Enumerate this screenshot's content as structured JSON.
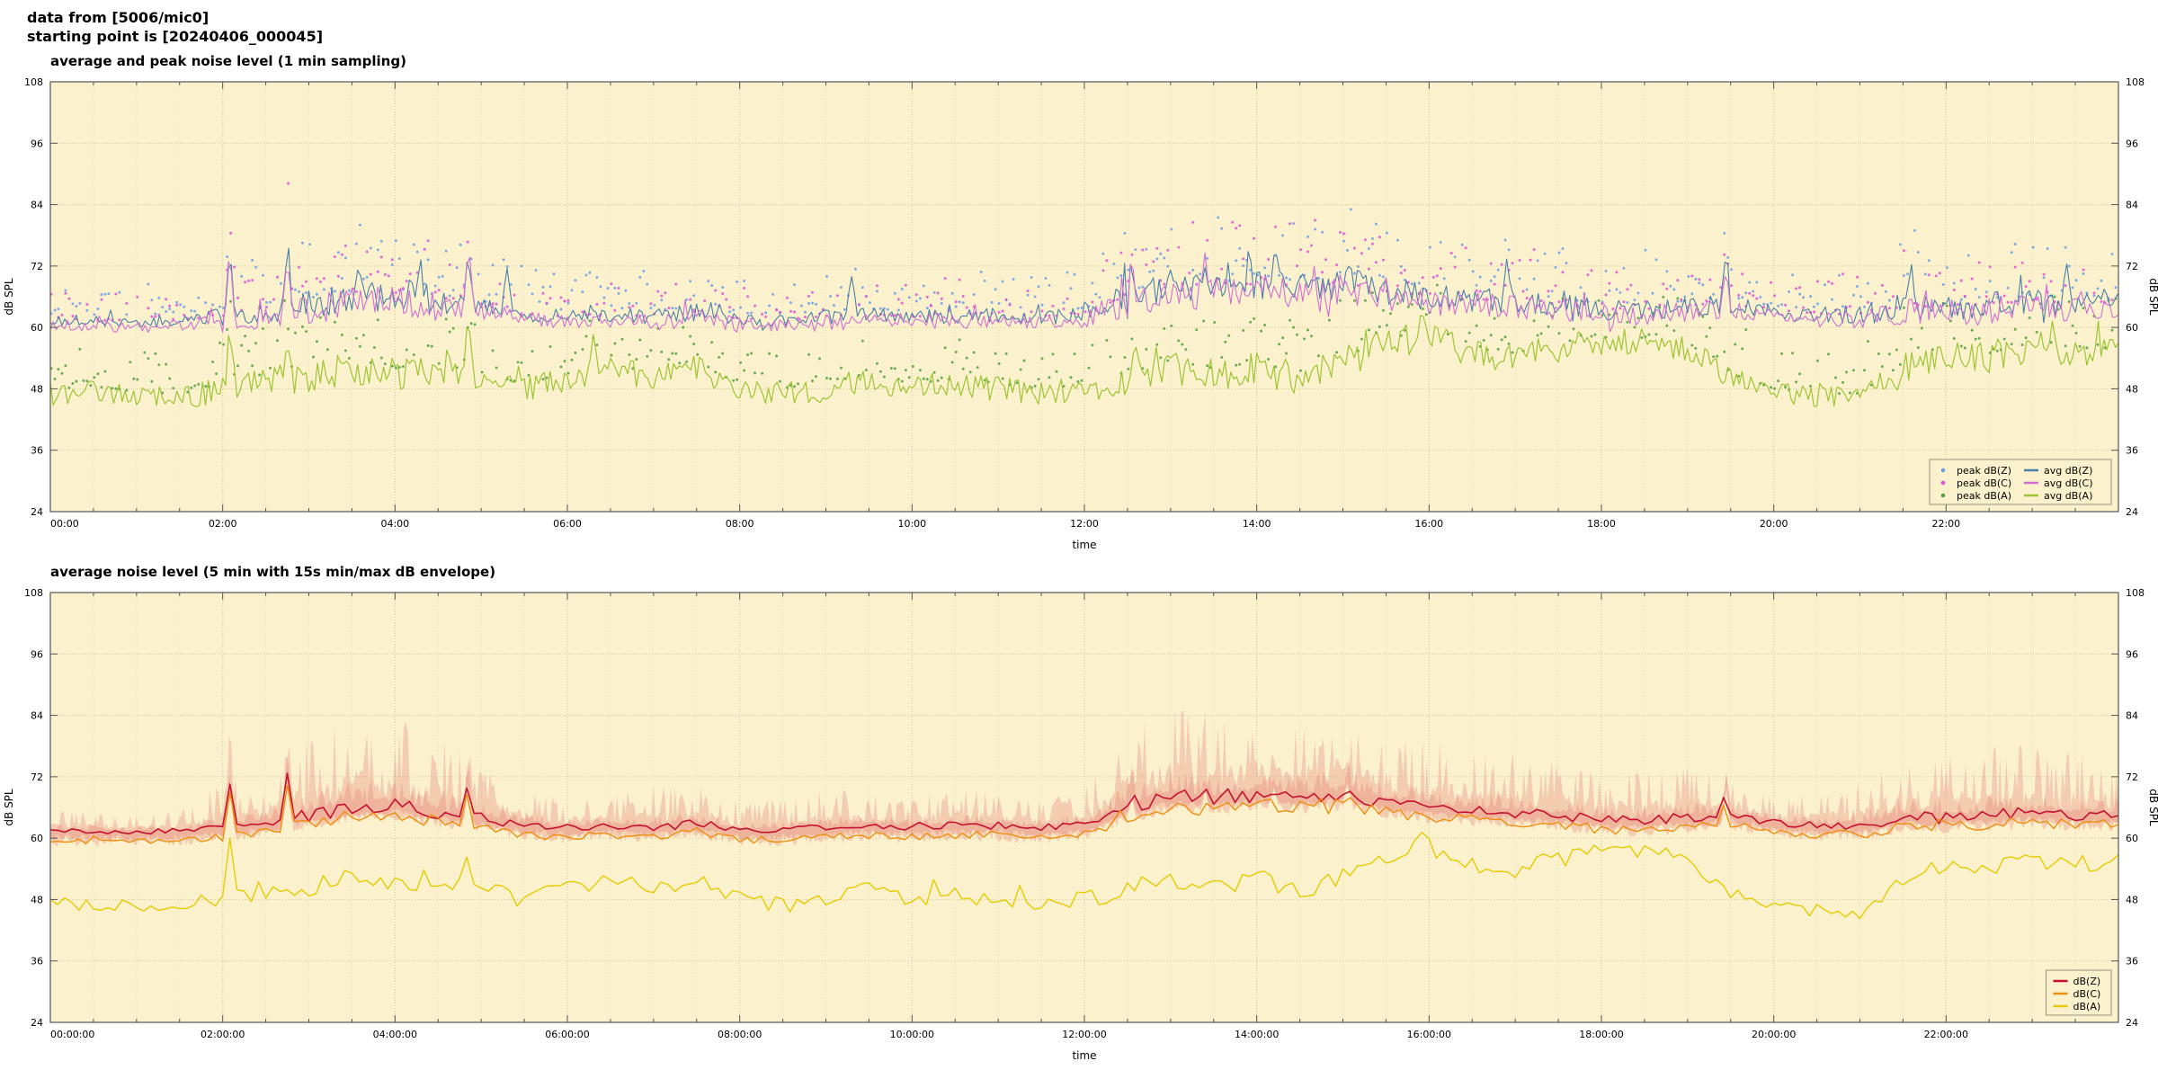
{
  "header": {
    "line1": "data from [5006/mic0]",
    "line2": "starting point is [20240406_000045]"
  },
  "palette": {
    "plot_bg": "#fbf2cd",
    "grid_minor": "#e8debb",
    "grid_major": "#cfc28e",
    "axis": "#555555",
    "text": "#000000",
    "peak_z": "#6e9fe6",
    "peak_c": "#e050d8",
    "peak_a": "#55a040",
    "avg_z": "#4a7fa6",
    "avg_c": "#cf6fd4",
    "avg_a": "#9dc433",
    "db_z": "#c41230",
    "db_c": "#ef8e0e",
    "db_a": "#e6ca00",
    "env_fill": "rgba(228,110,100,0.28)",
    "legend_border": "#999180"
  },
  "chart_data": [
    {
      "type": "line+scatter",
      "title": "average and peak noise level (1 min sampling)",
      "xlabel": "time",
      "ylabel": "dB SPL",
      "ylabel_right": "dB SPL",
      "xlim_hours": [
        0,
        24
      ],
      "ylim": [
        24,
        108
      ],
      "yticks": [
        24,
        36,
        48,
        60,
        72,
        84,
        96,
        108
      ],
      "xtick_hours": [
        0,
        2,
        4,
        6,
        8,
        10,
        12,
        14,
        16,
        18,
        20,
        22
      ],
      "xtick_labels": [
        "00:00",
        "02:00",
        "04:00",
        "06:00",
        "08:00",
        "10:00",
        "12:00",
        "14:00",
        "16:00",
        "18:00",
        "20:00",
        "22:00"
      ],
      "step_min": 2,
      "t_hours": [
        0,
        0.5,
        1,
        1.5,
        2,
        2.5,
        3,
        3.5,
        4,
        4.5,
        5,
        5.5,
        6,
        6.5,
        7,
        7.5,
        8,
        8.5,
        9,
        9.5,
        10,
        10.5,
        11,
        11.5,
        12,
        12.5,
        13,
        13.5,
        14,
        14.5,
        15,
        15.5,
        16,
        16.5,
        17,
        17.5,
        18,
        18.5,
        19,
        19.5,
        20,
        20.5,
        21,
        21.5,
        22,
        22.5,
        23,
        23.5
      ],
      "activity": [
        4,
        4,
        4,
        4,
        10,
        10,
        16,
        18,
        18,
        16,
        10,
        8,
        6,
        6,
        8,
        8,
        6,
        6,
        8,
        6,
        6,
        8,
        6,
        6,
        8,
        16,
        18,
        17,
        18,
        17,
        18,
        16,
        15,
        13,
        12,
        12,
        10,
        10,
        10,
        8,
        6,
        6,
        10,
        14,
        14,
        14,
        14,
        12
      ],
      "series": [
        {
          "name": "avg dB(Z)",
          "style": "line",
          "color_key": "avg_z",
          "width": 1.1,
          "jitter": [
            1.1,
            0.14
          ],
          "values": [
            61.5,
            61.3,
            61.2,
            61.4,
            62,
            63,
            64.5,
            66,
            66.5,
            65,
            64,
            62.5,
            62,
            62.5,
            62,
            63,
            61.5,
            61.5,
            62,
            62.5,
            62,
            62.5,
            62.5,
            62,
            62.5,
            66,
            68,
            67.5,
            68.5,
            68,
            68.5,
            67,
            66,
            65.5,
            65,
            64.5,
            63.5,
            63.5,
            64,
            64.5,
            63,
            62.5,
            62.5,
            64,
            64,
            64.5,
            65,
            64.5
          ],
          "spikes": [
            [
              2.08,
              76
            ],
            [
              2.75,
              77.5
            ],
            [
              3.55,
              71.5
            ],
            [
              4.3,
              72
            ],
            [
              4.85,
              76.5
            ],
            [
              5.3,
              70
            ],
            [
              7.5,
              70.5
            ],
            [
              9.3,
              69.5
            ],
            [
              12.55,
              74
            ],
            [
              13.4,
              74.5
            ],
            [
              14.2,
              75
            ],
            [
              15.05,
              74
            ],
            [
              16.9,
              72
            ],
            [
              19.45,
              75.5
            ],
            [
              21.6,
              71.5
            ],
            [
              23.0,
              73.5
            ],
            [
              23.4,
              72.5
            ]
          ]
        },
        {
          "name": "avg dB(C)",
          "style": "line",
          "color_key": "avg_c",
          "width": 1.1,
          "jitter": [
            1.1,
            0.14
          ],
          "values": [
            60.4,
            60.2,
            60.1,
            60.3,
            60.9,
            61.9,
            63.4,
            64.9,
            65.4,
            63.9,
            62.9,
            61.4,
            60.9,
            61.4,
            60.9,
            61.9,
            60.4,
            60.4,
            60.9,
            61.4,
            60.9,
            61.4,
            61.4,
            60.9,
            61.4,
            64.9,
            66.9,
            66.4,
            67.4,
            66.9,
            67.4,
            65.9,
            64.9,
            64.4,
            63.9,
            63.4,
            62.4,
            62.4,
            62.9,
            63.4,
            61.9,
            61.4,
            61.4,
            62.9,
            62.9,
            63.4,
            63.9,
            63.4
          ],
          "spikes": [
            [
              2.08,
              74.8
            ],
            [
              2.75,
              76.2
            ],
            [
              4.85,
              75.2
            ],
            [
              12.55,
              72.8
            ],
            [
              13.4,
              73
            ],
            [
              19.45,
              74.2
            ],
            [
              23.0,
              72.2
            ]
          ]
        },
        {
          "name": "avg dB(A)",
          "style": "line",
          "color_key": "avg_a",
          "width": 1.2,
          "jitter": [
            2.3,
            0.03
          ],
          "values": [
            47,
            47.5,
            46.5,
            46,
            48,
            50,
            50,
            52,
            51,
            52,
            50,
            48,
            50,
            52,
            50,
            52,
            48,
            47,
            48,
            50,
            48,
            49,
            48,
            47,
            48,
            50,
            52,
            51,
            52,
            50,
            53,
            57,
            58,
            55,
            54,
            56,
            57,
            57,
            56,
            50,
            47,
            46,
            46,
            52,
            55,
            54,
            56,
            55
          ],
          "spikes": [
            [
              2.08,
              62
            ],
            [
              2.75,
              59
            ],
            [
              4.85,
              60
            ],
            [
              6.3,
              57
            ],
            [
              9.5,
              57.5
            ],
            [
              12.6,
              58
            ],
            [
              15.9,
              61.5
            ],
            [
              18.6,
              59
            ],
            [
              21.5,
              59.5
            ],
            [
              23.1,
              59.5
            ]
          ]
        },
        {
          "name": "peak dB(Z)",
          "style": "scatter",
          "color_key": "peak_z",
          "follows": 0,
          "offset_min": 1.2,
          "spread_base": 6,
          "spread_act": 0.55
        },
        {
          "name": "peak dB(C)",
          "style": "scatter",
          "color_key": "peak_c",
          "follows": 1,
          "offset_min": 1.2,
          "spread_base": 5.5,
          "spread_act": 0.55
        },
        {
          "name": "peak dB(A)",
          "style": "scatter",
          "color_key": "peak_a",
          "follows": 2,
          "offset_min": 1.0,
          "spread_base": 8,
          "spread_act": 0.25
        }
      ],
      "legend": {
        "columns": [
          [
            "peak dB(Z)",
            "peak dB(C)",
            "peak dB(A)"
          ],
          [
            "avg dB(Z)",
            "avg dB(C)",
            "avg dB(A)"
          ]
        ]
      }
    },
    {
      "type": "line+envelope",
      "title": "average noise level (5 min with 15s min/max dB envelope)",
      "xlabel": "time",
      "ylabel": "dB SPL",
      "ylabel_right": "dB SPL",
      "xlim_hours": [
        0,
        24
      ],
      "ylim": [
        24,
        108
      ],
      "yticks": [
        24,
        36,
        48,
        60,
        72,
        84,
        96,
        108
      ],
      "xtick_hours": [
        0,
        2,
        4,
        6,
        8,
        10,
        12,
        14,
        16,
        18,
        20,
        22
      ],
      "xtick_labels": [
        "00:00:00",
        "02:00:00",
        "04:00:00",
        "06:00:00",
        "08:00:00",
        "10:00:00",
        "12:00:00",
        "14:00:00",
        "16:00:00",
        "18:00:00",
        "20:00:00",
        "22:00:00"
      ],
      "step_min": 5,
      "t_hours": [
        0,
        0.5,
        1,
        1.5,
        2,
        2.5,
        3,
        3.5,
        4,
        4.5,
        5,
        5.5,
        6,
        6.5,
        7,
        7.5,
        8,
        8.5,
        9,
        9.5,
        10,
        10.5,
        11,
        11.5,
        12,
        12.5,
        13,
        13.5,
        14,
        14.5,
        15,
        15.5,
        16,
        16.5,
        17,
        17.5,
        18,
        18.5,
        19,
        19.5,
        20,
        20.5,
        21,
        21.5,
        22,
        22.5,
        23,
        23.5
      ],
      "activity": [
        4,
        4,
        4,
        4,
        10,
        10,
        16,
        18,
        18,
        16,
        10,
        8,
        6,
        6,
        8,
        8,
        6,
        6,
        8,
        6,
        6,
        8,
        6,
        6,
        8,
        16,
        18,
        17,
        18,
        17,
        18,
        16,
        15,
        13,
        12,
        12,
        10,
        10,
        10,
        8,
        6,
        6,
        10,
        14,
        14,
        14,
        14,
        12
      ],
      "envelope": {
        "follows": 0,
        "color_key": "env_fill",
        "down": 2,
        "up": [
          4,
          4,
          4,
          4,
          10,
          10,
          16,
          18,
          18,
          16,
          10,
          8,
          6,
          6,
          8,
          8,
          6,
          6,
          8,
          6,
          6,
          8,
          6,
          6,
          8,
          16,
          18,
          17,
          18,
          17,
          18,
          16,
          15,
          13,
          12,
          12,
          10,
          10,
          10,
          8,
          6,
          6,
          10,
          14,
          14,
          14,
          14,
          12
        ]
      },
      "series": [
        {
          "name": "dB(Z)",
          "style": "line",
          "color_key": "db_z",
          "width": 1.6,
          "jitter": [
            0.6,
            0.1
          ],
          "values": [
            61.5,
            61.3,
            61.2,
            61.4,
            62,
            63,
            64.5,
            66,
            66.5,
            65,
            64,
            62.5,
            62,
            62.5,
            62,
            63,
            61.5,
            61.5,
            62,
            62.5,
            62,
            62.5,
            62.5,
            62,
            62.5,
            66,
            68,
            67.5,
            68.5,
            68,
            68.5,
            67,
            66,
            65.5,
            65,
            64.5,
            63.5,
            63.5,
            64,
            64.5,
            63,
            62.5,
            62.5,
            64,
            64,
            64.5,
            65,
            64.5
          ],
          "spikes": [
            [
              2.08,
              72
            ],
            [
              2.75,
              72.5
            ],
            [
              4.85,
              72
            ],
            [
              12.55,
              70
            ],
            [
              13.4,
              70.5
            ],
            [
              14.2,
              71
            ],
            [
              15.05,
              72
            ],
            [
              19.45,
              71.5
            ],
            [
              23.0,
              70
            ]
          ]
        },
        {
          "name": "dB(C)",
          "style": "line",
          "color_key": "db_c",
          "width": 1.4,
          "jitter": [
            0.6,
            0.1
          ],
          "values": [
            59.7,
            59.5,
            59.4,
            59.6,
            60.2,
            61.2,
            62.7,
            64.2,
            64.7,
            63.2,
            62.2,
            60.7,
            60.2,
            60.7,
            60.2,
            61.2,
            59.7,
            59.7,
            60.2,
            60.7,
            60.2,
            60.7,
            60.7,
            60.2,
            60.7,
            64.2,
            66.2,
            65.7,
            66.7,
            66.2,
            66.7,
            65.2,
            64.2,
            63.7,
            63.2,
            62.7,
            61.7,
            61.7,
            62.2,
            62.7,
            61.2,
            60.7,
            60.7,
            62.2,
            62.2,
            62.7,
            63.2,
            62.7
          ],
          "spikes": [
            [
              2.08,
              70
            ],
            [
              2.75,
              70.5
            ],
            [
              4.85,
              70
            ],
            [
              15.05,
              69.5
            ],
            [
              19.45,
              69.5
            ]
          ]
        },
        {
          "name": "dB(A)",
          "style": "line",
          "color_key": "db_a",
          "width": 1.4,
          "jitter": [
            1.5,
            0.03
          ],
          "values": [
            47,
            47.5,
            46.5,
            46,
            48,
            50,
            50,
            52,
            51,
            52,
            50,
            48,
            50,
            52,
            50,
            52,
            48,
            47,
            48,
            50,
            48,
            49,
            48,
            47,
            48,
            50,
            52,
            51,
            52,
            50,
            53,
            57,
            58,
            55,
            54,
            56,
            57,
            57,
            56,
            50,
            47,
            46,
            46,
            52,
            55,
            54,
            56,
            55
          ],
          "spikes": [
            [
              2.08,
              60
            ],
            [
              4.85,
              58
            ],
            [
              15.9,
              60
            ],
            [
              21.5,
              58
            ]
          ]
        }
      ],
      "legend": {
        "columns": [
          [
            "dB(Z)",
            "dB(C)",
            "dB(A)"
          ]
        ]
      }
    }
  ]
}
